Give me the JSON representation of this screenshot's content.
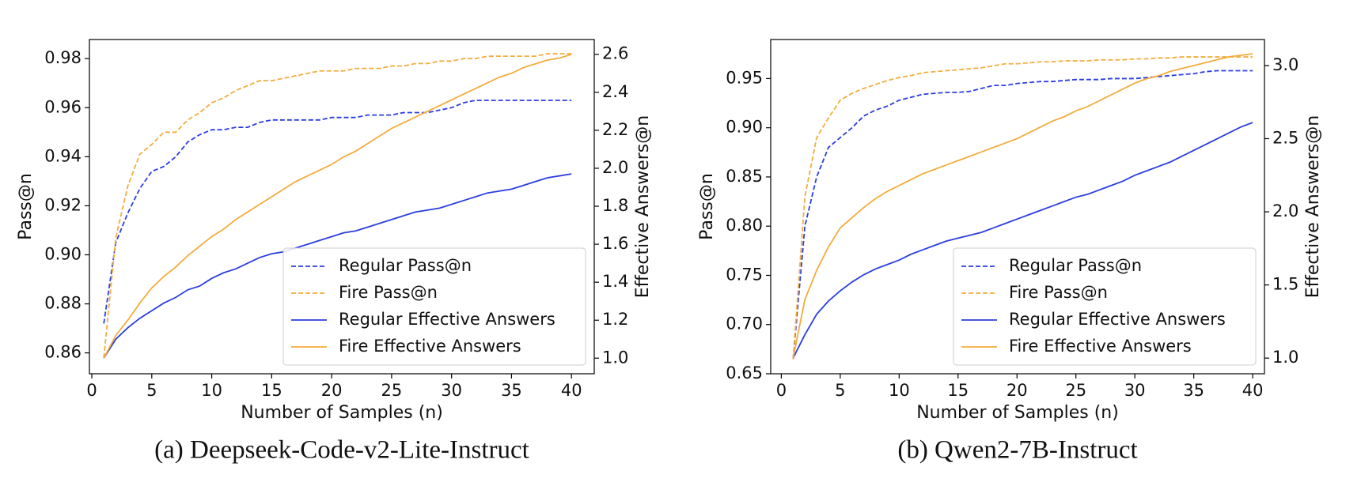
{
  "chart_data": [
    {
      "type": "line",
      "caption": "(a) Deepseek-Code-v2-Lite-Instruct",
      "xlabel": "Number of Samples (n)",
      "ylabel": "Pass@n",
      "y2label": "Effective Answers@n",
      "x": [
        1,
        2,
        3,
        4,
        5,
        6,
        7,
        8,
        9,
        10,
        11,
        12,
        13,
        14,
        15,
        16,
        17,
        18,
        19,
        20,
        21,
        22,
        23,
        24,
        25,
        26,
        27,
        28,
        29,
        30,
        31,
        32,
        33,
        34,
        35,
        36,
        37,
        38,
        39,
        40
      ],
      "xlim": [
        -0.2,
        41.9
      ],
      "xticks": [
        0,
        5,
        10,
        15,
        20,
        25,
        30,
        35,
        40
      ],
      "ylim": [
        0.8515,
        0.9878
      ],
      "yticks": [
        0.86,
        0.88,
        {
          "value": 0.9,
          "label": "0.90"
        },
        0.92,
        0.94,
        0.96,
        0.98
      ],
      "y2lim": [
        0.918,
        2.678
      ],
      "y2ticks": [
        {
          "value": 1,
          "label": "1.0"
        },
        1.2,
        1.4,
        1.6,
        1.8,
        {
          "value": 2,
          "label": "2.0"
        },
        2.2,
        2.4,
        2.6
      ],
      "legend": "lower right",
      "series": [
        {
          "name": "Regular Pass@n",
          "color": "#2b3ee0",
          "linestyle": "dashed",
          "values": [
            0.872,
            0.905,
            0.917,
            0.927,
            0.934,
            0.936,
            0.94,
            0.946,
            0.949,
            0.951,
            0.951,
            0.952,
            0.952,
            0.954,
            0.955,
            0.955,
            0.955,
            0.955,
            0.955,
            0.956,
            0.956,
            0.956,
            0.957,
            0.957,
            0.957,
            0.958,
            0.958,
            0.958,
            0.959,
            0.96,
            0.962,
            0.963,
            0.963,
            0.963,
            0.963,
            0.963,
            0.963,
            0.963,
            0.963,
            0.963
          ]
        },
        {
          "name": "Fire Pass@n",
          "color": "#f4ac3c",
          "linestyle": "dashed",
          "values": [
            0.858,
            0.907,
            0.928,
            0.941,
            0.945,
            0.95,
            0.95,
            0.955,
            0.958,
            0.962,
            0.964,
            0.967,
            0.969,
            0.971,
            0.971,
            0.972,
            0.973,
            0.974,
            0.975,
            0.975,
            0.975,
            0.976,
            0.976,
            0.976,
            0.977,
            0.977,
            0.978,
            0.978,
            0.979,
            0.979,
            0.98,
            0.98,
            0.981,
            0.981,
            0.981,
            0.981,
            0.981,
            0.982,
            0.982,
            0.982
          ]
        },
        {
          "name": "Regular Effective Answers",
          "color": "#2b3ee0",
          "linestyle": "solid",
          "axis": "y2",
          "values": [
            1.0,
            1.1,
            1.16,
            1.21,
            1.25,
            1.29,
            1.32,
            1.36,
            1.38,
            1.42,
            1.45,
            1.47,
            1.5,
            1.53,
            1.55,
            1.56,
            1.58,
            1.6,
            1.62,
            1.64,
            1.66,
            1.67,
            1.69,
            1.71,
            1.73,
            1.75,
            1.77,
            1.78,
            1.79,
            1.81,
            1.83,
            1.85,
            1.87,
            1.88,
            1.89,
            1.91,
            1.93,
            1.95,
            1.96,
            1.97
          ]
        },
        {
          "name": "Fire Effective Answers",
          "color": "#f4ac3c",
          "linestyle": "solid",
          "axis": "y2",
          "values": [
            1.0,
            1.12,
            1.2,
            1.29,
            1.37,
            1.43,
            1.48,
            1.54,
            1.59,
            1.64,
            1.68,
            1.73,
            1.77,
            1.81,
            1.85,
            1.89,
            1.93,
            1.96,
            1.99,
            2.02,
            2.06,
            2.09,
            2.13,
            2.17,
            2.21,
            2.24,
            2.27,
            2.3,
            2.33,
            2.36,
            2.39,
            2.42,
            2.45,
            2.48,
            2.5,
            2.53,
            2.55,
            2.57,
            2.58,
            2.6
          ]
        }
      ]
    },
    {
      "type": "line",
      "caption": "(b) Qwen2-7B-Instruct",
      "xlabel": "Number of Samples (n)",
      "ylabel": "Pass@n",
      "y2label": "Effective Answers@n",
      "x": [
        1,
        2,
        3,
        4,
        5,
        6,
        7,
        8,
        9,
        10,
        11,
        12,
        13,
        14,
        15,
        16,
        17,
        18,
        19,
        20,
        21,
        22,
        23,
        24,
        25,
        26,
        27,
        28,
        29,
        30,
        31,
        32,
        33,
        34,
        35,
        36,
        37,
        38,
        39,
        40
      ],
      "xlim": [
        -0.9,
        41.0
      ],
      "xticks": [
        0,
        5,
        10,
        15,
        20,
        25,
        30,
        35,
        40
      ],
      "ylim": [
        0.65,
        0.9897
      ],
      "yticks": [
        0.65,
        {
          "value": 0.7,
          "label": "0.70"
        },
        0.75,
        {
          "value": 0.8,
          "label": "0.80"
        },
        0.85,
        {
          "value": 0.9,
          "label": "0.90"
        },
        0.95
      ],
      "y2lim": [
        0.893,
        3.178
      ],
      "y2ticks": [
        {
          "value": 1,
          "label": "1.0"
        },
        1.5,
        {
          "value": 2,
          "label": "2.0"
        },
        2.5,
        {
          "value": 3,
          "label": "3.0"
        }
      ],
      "legend": "lower right",
      "series": [
        {
          "name": "Regular Pass@n",
          "color": "#2b3ee0",
          "linestyle": "dashed",
          "values": [
            0.665,
            0.8,
            0.85,
            0.88,
            0.89,
            0.9,
            0.912,
            0.918,
            0.922,
            0.928,
            0.931,
            0.934,
            0.935,
            0.936,
            0.936,
            0.937,
            0.94,
            0.943,
            0.943,
            0.945,
            0.946,
            0.947,
            0.947,
            0.948,
            0.949,
            0.949,
            0.949,
            0.95,
            0.95,
            0.95,
            0.951,
            0.952,
            0.953,
            0.954,
            0.955,
            0.957,
            0.958,
            0.958,
            0.958,
            0.958
          ]
        },
        {
          "name": "Fire Pass@n",
          "color": "#f4ac3c",
          "linestyle": "dashed",
          "values": [
            0.665,
            0.83,
            0.89,
            0.91,
            0.928,
            0.935,
            0.94,
            0.944,
            0.948,
            0.951,
            0.953,
            0.956,
            0.957,
            0.958,
            0.959,
            0.96,
            0.961,
            0.963,
            0.965,
            0.965,
            0.966,
            0.967,
            0.967,
            0.968,
            0.968,
            0.968,
            0.969,
            0.969,
            0.969,
            0.97,
            0.97,
            0.971,
            0.971,
            0.972,
            0.972,
            0.972,
            0.972,
            0.972,
            0.972,
            0.972
          ]
        },
        {
          "name": "Regular Effective Answers",
          "color": "#2b3ee0",
          "linestyle": "solid",
          "axis": "y2",
          "values": [
            1.0,
            1.16,
            1.3,
            1.39,
            1.46,
            1.52,
            1.57,
            1.61,
            1.64,
            1.67,
            1.71,
            1.74,
            1.77,
            1.8,
            1.82,
            1.84,
            1.86,
            1.89,
            1.92,
            1.95,
            1.98,
            2.01,
            2.04,
            2.07,
            2.1,
            2.12,
            2.15,
            2.18,
            2.21,
            2.25,
            2.28,
            2.31,
            2.34,
            2.38,
            2.42,
            2.46,
            2.5,
            2.54,
            2.58,
            2.61
          ]
        },
        {
          "name": "Fire Effective Answers",
          "color": "#f4ac3c",
          "linestyle": "solid",
          "axis": "y2",
          "values": [
            1.0,
            1.4,
            1.6,
            1.76,
            1.89,
            1.96,
            2.03,
            2.09,
            2.14,
            2.18,
            2.22,
            2.26,
            2.29,
            2.32,
            2.35,
            2.38,
            2.41,
            2.44,
            2.47,
            2.5,
            2.54,
            2.58,
            2.62,
            2.65,
            2.69,
            2.72,
            2.76,
            2.8,
            2.84,
            2.88,
            2.91,
            2.93,
            2.96,
            2.98,
            3.0,
            3.02,
            3.04,
            3.06,
            3.07,
            3.08
          ]
        }
      ]
    }
  ]
}
